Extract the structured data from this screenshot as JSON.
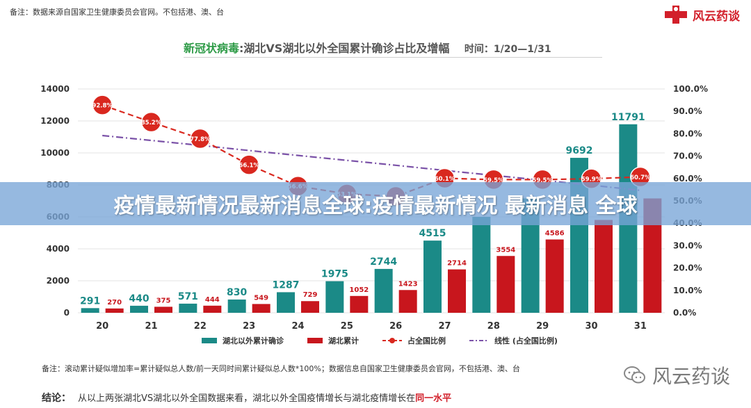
{
  "top_note": "备注：数据来源自国家卫生健康委员会官网。不包括港、澳、台",
  "brand": {
    "name": "风云药谈",
    "icon": "red-cross-person-icon",
    "color": "#d21f2a"
  },
  "header": {
    "title_virus": "新冠状病毒",
    "title_rest": ":湖北VS湖北以外全国累计确诊占比及增幅",
    "time_label": "时间：1/20—1/31"
  },
  "banner_text": "疫情最新情况最新消息全球:疫情最新情况 最新消息 全球",
  "bottom_note": "备注：滚动累计疑似增加率=累计疑似总人数/前一天同时间累计疑似总人数*100%；数据信息自国家卫生健康委员会官网，不包括港、澳、台",
  "conclusion": {
    "label": "结论：",
    "text": "从以上两张湖北VS湖北以外全国数据来看，湖北以外全国疫情增长与湖北疫情增长在",
    "highlight": "同一水平"
  },
  "watermark": {
    "name": "风云药谈",
    "icon": "wechat-icon"
  },
  "chart_data": {
    "type": "bar",
    "categories": [
      "20",
      "21",
      "22",
      "23",
      "24",
      "25",
      "26",
      "27",
      "28",
      "29",
      "30",
      "31"
    ],
    "series": [
      {
        "name": "湖北以外累计确诊",
        "kind": "bar",
        "axis": "left",
        "color": "#1b8a87",
        "values": [
          291,
          440,
          571,
          830,
          1287,
          1975,
          2744,
          4515,
          6000,
          7153,
          9692,
          11791
        ],
        "labels": [
          "291",
          "440",
          "571",
          "830",
          "1287",
          "1975",
          "2744",
          "4515",
          "",
          "",
          "9692",
          "11791"
        ]
      },
      {
        "name": "湖北累计",
        "kind": "bar",
        "axis": "left",
        "color": "#c8161d",
        "values": [
          270,
          375,
          444,
          549,
          729,
          1052,
          1423,
          2714,
          3554,
          4586,
          5806,
          7153
        ],
        "labels": [
          "270",
          "375",
          "444",
          "549",
          "729",
          "1052",
          "1423",
          "2714",
          "3554",
          "4586",
          "",
          ""
        ]
      },
      {
        "name": "占全国比例",
        "kind": "line",
        "axis": "right",
        "color": "#d9281f",
        "values": [
          92.8,
          85.2,
          77.8,
          66.1,
          56.6,
          53.1,
          52.0,
          60.1,
          59.5,
          59.5,
          59.9,
          60.7
        ],
        "labels": [
          "92.8%",
          "85.2%",
          "77.8%",
          "66.1%",
          "56.6%",
          "53.1%",
          "",
          "60.1%",
          "59.5%",
          "59.5%",
          "59.9%",
          "60.7%"
        ]
      },
      {
        "name": "线性 (占全国比例)",
        "kind": "trend",
        "axis": "right",
        "color": "#7b52a8",
        "values": [
          79.2,
          77.0,
          74.8,
          72.5,
          70.3,
          68.1,
          65.9,
          63.6,
          61.4,
          59.2,
          57.0,
          54.7
        ]
      }
    ],
    "y_left": {
      "min": 0,
      "max": 14000,
      "ticks": [
        "0",
        "2000",
        "4000",
        "6000",
        "8000",
        "10000",
        "12000",
        "14000"
      ]
    },
    "y_right": {
      "min": 0,
      "max": 100,
      "ticks": [
        "0.0%",
        "10.0%",
        "20.0%",
        "30.0%",
        "40.0%",
        "50.0%",
        "60.0%",
        "70.0%",
        "80.0%",
        "90.0%",
        "100.0%"
      ]
    },
    "grid": true,
    "legend_position": "bottom"
  }
}
